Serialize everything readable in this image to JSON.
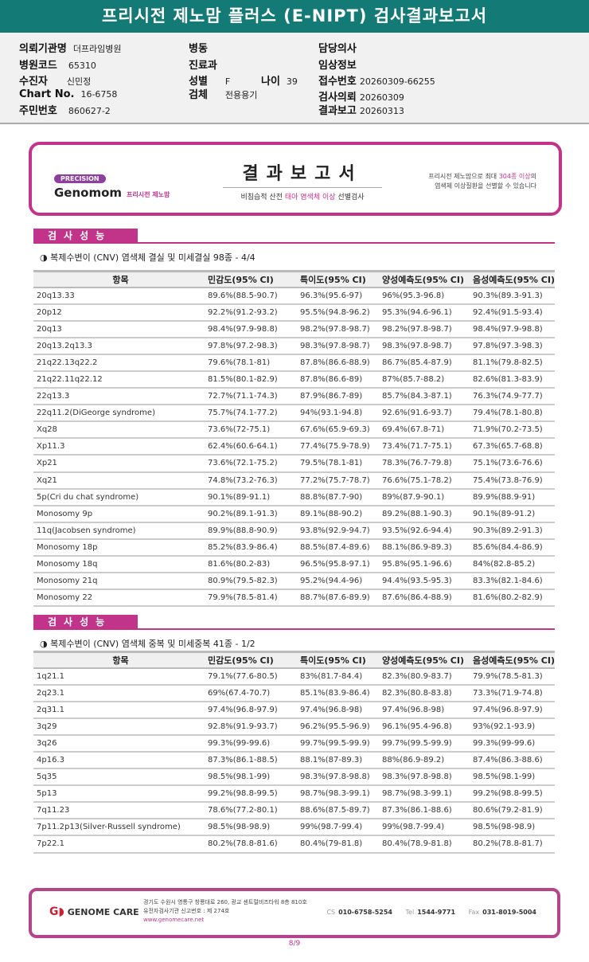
{
  "title": "프리시전 제노맘 플러스 (E-NIPT) 검사결과보고서",
  "info": {
    "institution_label": "의뢰기관명",
    "institution": "더프라임병원",
    "hospital_code_label": "병원코드",
    "hospital_code": "65310",
    "patient_label": "수진자",
    "patient": "신민정",
    "chart_label": "Chart No.",
    "chart": "16-6758",
    "id_label": "주민번호",
    "id": "860627-2",
    "ward_label": "병동",
    "dept_label": "진료과",
    "sex_label": "성별",
    "sex": "F",
    "age_label": "나이",
    "age": "39",
    "specimen_label": "검체",
    "specimen": "전용용기",
    "doctor_label": "담당의사",
    "clinical_label": "임상정보",
    "receipt_label": "접수번호",
    "receipt": "20260309-66255",
    "request_label": "검사의뢰",
    "request": "20260309",
    "report_label": "결과보고",
    "report": "20260313"
  },
  "banner": {
    "pill": "PRECISION",
    "brand": "Genomom",
    "brand_sub": "프리시전 제노맘",
    "title": "결과보고서",
    "subtitle_pre": "비침습적 산전 ",
    "subtitle_hl": "태아 염색체 이상",
    "subtitle_post": " 선별검사",
    "desc1_pre": "프리시전 제노맘으로 최대 ",
    "desc1_hl": "304종 이상",
    "desc1_post": "의",
    "desc2": "염색체 이상질환을 선별할 수 있습니다"
  },
  "headers": [
    "항목",
    "민감도(95% CI)",
    "특이도(95% CI)",
    "양성예측도(95% CI)",
    "음성예측도(95% CI)"
  ],
  "sections": [
    {
      "label": "검사성능",
      "subtitle": "◑ 복제수변이 (CNV) 염색체 결실 및 미세결실 98종 - 4/4",
      "rows": [
        [
          "20q13.33",
          "89.6%(88.5-90.7)",
          "96.3%(95.6-97)",
          "96%(95.3-96.8)",
          "90.3%(89.3-91.3)"
        ],
        [
          "20p12",
          "92.2%(91.2-93.2)",
          "95.5%(94.8-96.2)",
          "95.3%(94.6-96.1)",
          "92.4%(91.5-93.4)"
        ],
        [
          "20q13",
          "98.4%(97.9-98.8)",
          "98.2%(97.8-98.7)",
          "98.2%(97.8-98.7)",
          "98.4%(97.9-98.8)"
        ],
        [
          "20q13.2q13.3",
          "97.8%(97.2-98.3)",
          "98.3%(97.8-98.7)",
          "98.3%(97.8-98.7)",
          "97.8%(97.3-98.3)"
        ],
        [
          "21q22.13q22.2",
          "79.6%(78.1-81)",
          "87.8%(86.6-88.9)",
          "86.7%(85.4-87.9)",
          "81.1%(79.8-82.5)"
        ],
        [
          "21q22.11q22.12",
          "81.5%(80.1-82.9)",
          "87.8%(86.6-89)",
          "87%(85.7-88.2)",
          "82.6%(81.3-83.9)"
        ],
        [
          "22q13.3",
          "72.7%(71.1-74.3)",
          "87.9%(86.7-89)",
          "85.7%(84.3-87.1)",
          "76.3%(74.9-77.7)"
        ],
        [
          "22q11.2(DiGeorge syndrome)",
          "75.7%(74.1-77.2)",
          "94%(93.1-94.8)",
          "92.6%(91.6-93.7)",
          "79.4%(78.1-80.8)"
        ],
        [
          "Xq28",
          "73.6%(72-75.1)",
          "67.6%(65.9-69.3)",
          "69.4%(67.8-71)",
          "71.9%(70.2-73.5)"
        ],
        [
          "Xp11.3",
          "62.4%(60.6-64.1)",
          "77.4%(75.9-78.9)",
          "73.4%(71.7-75.1)",
          "67.3%(65.7-68.8)"
        ],
        [
          "Xp21",
          "73.6%(72.1-75.2)",
          "79.5%(78.1-81)",
          "78.3%(76.7-79.8)",
          "75.1%(73.6-76.6)"
        ],
        [
          "Xq21",
          "74.8%(73.2-76.3)",
          "77.2%(75.7-78.7)",
          "76.6%(75.1-78.2)",
          "75.4%(73.8-76.9)"
        ],
        [
          "5p(Cri du chat syndrome)",
          "90.1%(89-91.1)",
          "88.8%(87.7-90)",
          "89%(87.9-90.1)",
          "89.9%(88.9-91)"
        ],
        [
          "Monosomy 9p",
          "90.2%(89.1-91.3)",
          "89.1%(88-90.2)",
          "89.2%(88.1-90.3)",
          "90.1%(89-91.2)"
        ],
        [
          "11q(Jacobsen syndrome)",
          "89.9%(88.8-90.9)",
          "93.8%(92.9-94.7)",
          "93.5%(92.6-94.4)",
          "90.3%(89.2-91.3)"
        ],
        [
          "Monosomy 18p",
          "85.2%(83.9-86.4)",
          "88.5%(87.4-89.6)",
          "88.1%(86.9-89.3)",
          "85.6%(84.4-86.9)"
        ],
        [
          "Monosomy 18q",
          "81.6%(80.2-83)",
          "96.5%(95.8-97.1)",
          "95.8%(95.1-96.6)",
          "84%(82.8-85.2)"
        ],
        [
          "Monosomy 21q",
          "80.9%(79.5-82.3)",
          "95.2%(94.4-96)",
          "94.4%(93.5-95.3)",
          "83.3%(82.1-84.6)"
        ],
        [
          "Monosomy 22",
          "79.9%(78.5-81.4)",
          "88.7%(87.6-89.9)",
          "87.6%(86.4-88.9)",
          "81.6%(80.2-82.9)"
        ]
      ]
    },
    {
      "label": "검사성능",
      "subtitle": "◑ 복제수변이 (CNV) 염색체 중복 및 미세중복 41종 - 1/2",
      "rows": [
        [
          "1q21.1",
          "79.1%(77.6-80.5)",
          "83%(81.7-84.4)",
          "82.3%(80.9-83.7)",
          "79.9%(78.5-81.3)"
        ],
        [
          "2q23.1",
          "69%(67.4-70.7)",
          "85.1%(83.9-86.4)",
          "82.3%(80.8-83.8)",
          "73.3%(71.9-74.8)"
        ],
        [
          "2q31.1",
          "97.4%(96.8-97.9)",
          "97.4%(96.8-98)",
          "97.4%(96.8-98)",
          "97.4%(96.8-97.9)"
        ],
        [
          "3q29",
          "92.8%(91.9-93.7)",
          "96.2%(95.5-96.9)",
          "96.1%(95.4-96.8)",
          "93%(92.1-93.9)"
        ],
        [
          "3q26",
          "99.3%(99-99.6)",
          "99.7%(99.5-99.9)",
          "99.7%(99.5-99.9)",
          "99.3%(99-99.6)"
        ],
        [
          "4p16.3",
          "87.3%(86.1-88.5)",
          "88.1%(87-89.3)",
          "88%(86.9-89.2)",
          "87.4%(86.3-88.6)"
        ],
        [
          "5q35",
          "98.5%(98.1-99)",
          "98.3%(97.8-98.8)",
          "98.3%(97.8-98.8)",
          "98.5%(98.1-99)"
        ],
        [
          "5p13",
          "99.2%(98.8-99.5)",
          "98.7%(98.3-99.1)",
          "98.7%(98.3-99.1)",
          "99.2%(98.8-99.5)"
        ],
        [
          "7q11.23",
          "78.6%(77.2-80.1)",
          "88.6%(87.5-89.7)",
          "87.3%(86.1-88.6)",
          "80.6%(79.2-81.9)"
        ],
        [
          "7p11.2p13(Silver-Russell syndrome)",
          "98.5%(98-98.9)",
          "99%(98.7-99.4)",
          "99%(98.7-99.4)",
          "98.5%(98-98.9)"
        ],
        [
          "7p22.1",
          "80.2%(78.8-81.6)",
          "80.4%(79-81.8)",
          "80.4%(78.9-81.8)",
          "80.2%(78.8-81.7)"
        ]
      ]
    }
  ],
  "footer": {
    "company": "GENOME CARE",
    "address": "경기도 수원시 영통구 창룡대로 260, 광교 센트럴비즈타워 8층 810호",
    "license": "유전자검사기관 신고번호 : 제 274호",
    "web": "www.genomecare.net",
    "cs_label": "CS",
    "cs": "010-6758-5254",
    "tel_label": "Tel",
    "tel": "1544-9771",
    "fax_label": "Fax",
    "fax": "031-8019-5004"
  },
  "page": "8/9",
  "colors": {
    "title_bar": "#137a76",
    "accent": "#c2338a"
  }
}
